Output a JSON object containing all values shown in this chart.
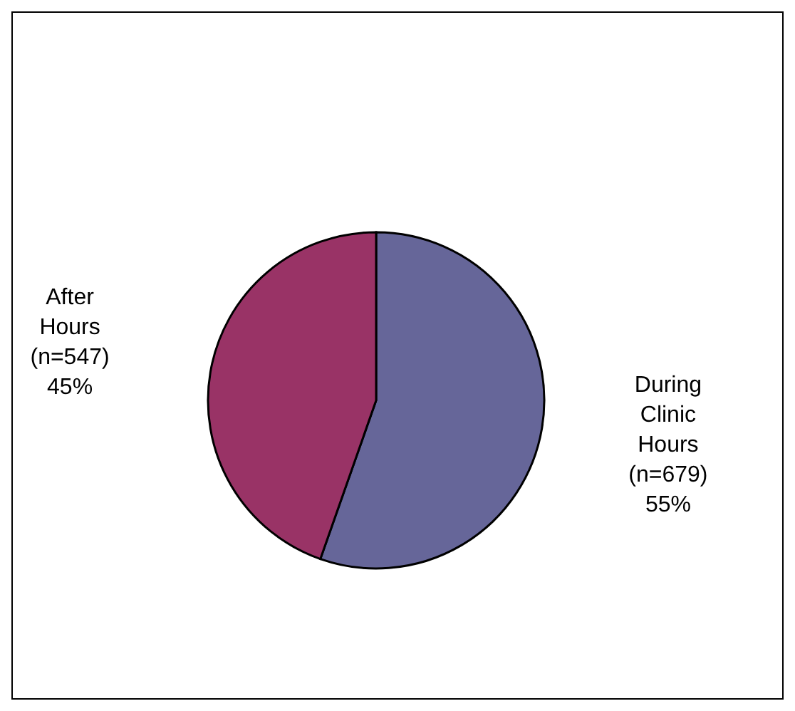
{
  "chart_data": {
    "type": "pie",
    "categories": [
      "During Clinic Hours",
      "After Hours"
    ],
    "values": [
      679,
      547
    ],
    "value_labels": [
      "(n=679) 55%",
      "(n=547) 45%"
    ],
    "colors": [
      "#666699",
      "#993366"
    ]
  }
}
